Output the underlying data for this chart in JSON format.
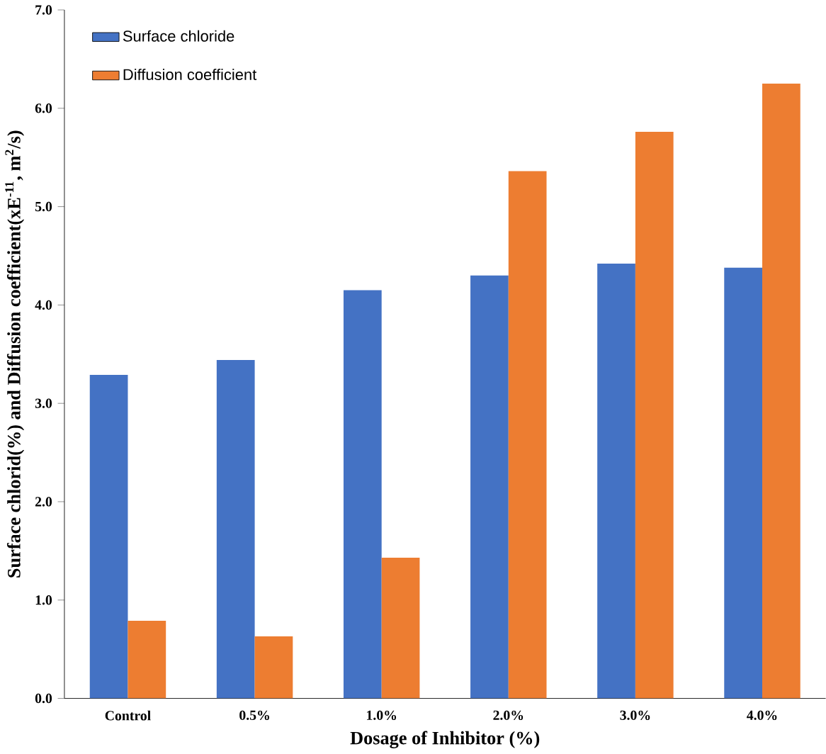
{
  "chart_data": {
    "type": "bar",
    "xlabel": "Dosage of Inhibitor (%)",
    "ylabel": "Surface chlorid(%) and Diffusion coefficient(xE$^{-11}$, m$^{2}$/s)",
    "categories": [
      "Control",
      "0.5%",
      "1.0%",
      "2.0%",
      "3.0%",
      "4.0%"
    ],
    "series": [
      {
        "name": "Surface chloride",
        "color": "#4472c4",
        "values": [
          3.29,
          3.44,
          4.15,
          4.3,
          4.42,
          4.38
        ]
      },
      {
        "name": "Diffusion coefficient",
        "color": "#ed7d31",
        "values": [
          0.79,
          0.63,
          1.43,
          5.36,
          5.76,
          6.25
        ]
      }
    ],
    "ylim": [
      0,
      7
    ],
    "yticks": [
      {
        "value": 0,
        "label": "0.0"
      },
      {
        "value": 1,
        "label": "1.0"
      },
      {
        "value": 2,
        "label": "2.0"
      },
      {
        "value": 3,
        "label": "3.0"
      },
      {
        "value": 4,
        "label": "4.0"
      },
      {
        "value": 5,
        "label": "5.0"
      },
      {
        "value": 6,
        "label": "6.0"
      },
      {
        "value": 7,
        "label": "7.0"
      }
    ],
    "legend": "top left",
    "grid": false
  }
}
